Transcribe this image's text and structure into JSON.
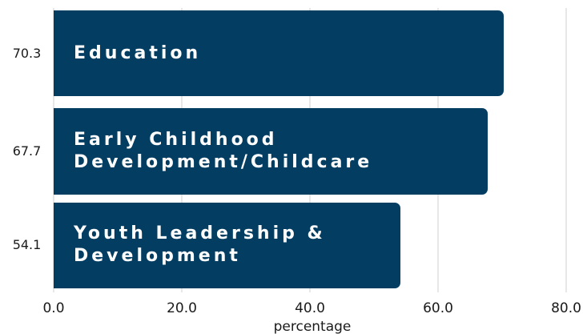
{
  "chart_data": {
    "type": "barh",
    "categories": [
      "Education",
      "Early Childhood Development/Childcare",
      "Youth Leadership & Development"
    ],
    "values": [
      70.3,
      67.7,
      54.1
    ],
    "color": "#033d62",
    "xlabel": "percentage",
    "xlim": [
      0,
      80
    ],
    "xticks": [
      {
        "value": 0,
        "label": "0.0"
      },
      {
        "value": 20,
        "label": "20.0"
      },
      {
        "value": 40,
        "label": "40.0"
      },
      {
        "value": 60,
        "label": "60.0"
      },
      {
        "value": 80,
        "label": "80.0"
      }
    ],
    "grid": true
  }
}
